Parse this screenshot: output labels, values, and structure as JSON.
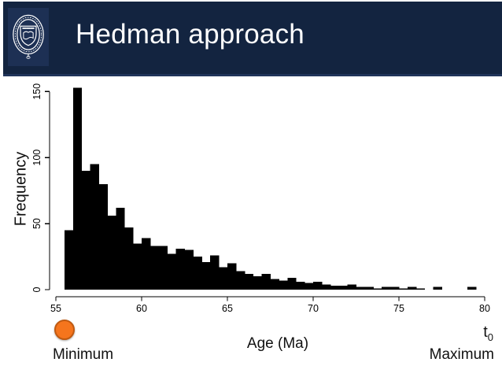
{
  "slide": {
    "title": "Hedman approach"
  },
  "logo": {
    "name": "university-of-oxford-crest"
  },
  "chart_data": {
    "type": "bar",
    "subtype": "histogram",
    "title": "",
    "xlabel": "Age (Ma)",
    "ylabel": "Frequency",
    "bin_start": 55.5,
    "bin_width": 0.5,
    "values": [
      45,
      153,
      90,
      95,
      80,
      56,
      62,
      47,
      35,
      39,
      33,
      33,
      27,
      31,
      30,
      25,
      21,
      26,
      17,
      20,
      14,
      12,
      10,
      12,
      8,
      7,
      9,
      6,
      5,
      6,
      4,
      3,
      3,
      4,
      2,
      2,
      1,
      2,
      2,
      1,
      2,
      1,
      0,
      2,
      0,
      0,
      0,
      2
    ],
    "xticks": [
      55,
      60,
      65,
      70,
      75,
      80
    ],
    "yticks": [
      0,
      50,
      100,
      150
    ],
    "xlim": [
      55,
      80
    ],
    "ylim": [
      0,
      155
    ],
    "grid": false,
    "legend": null,
    "bar_color": "#000000",
    "axis_color": "#000000"
  },
  "annotations": {
    "minimum_label": "Minimum",
    "maximum_label": "Maximum",
    "t0_base": "t",
    "t0_sub": "0",
    "marker_color": "#F5751D",
    "marker_border": "#C05A11"
  },
  "colors": {
    "header_bg": "#132440",
    "logo_bg": "#1D3054",
    "title_text": "#FFFFFF"
  }
}
